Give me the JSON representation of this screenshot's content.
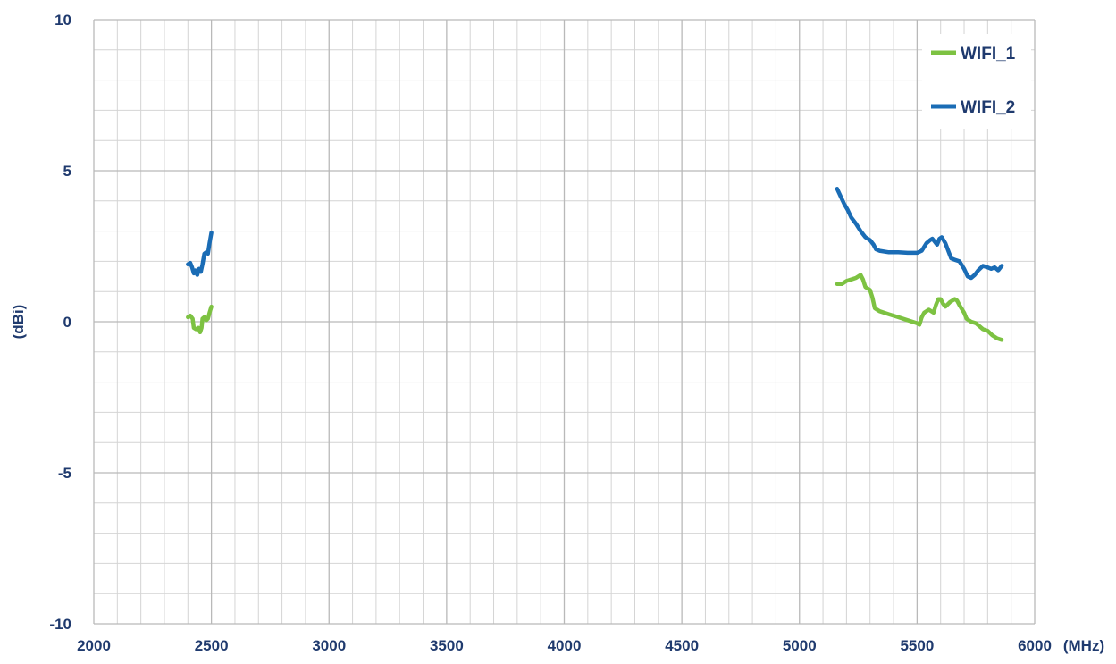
{
  "chart_data": {
    "type": "line",
    "title": "",
    "xlabel": "(MHz)",
    "ylabel": "(dBi)",
    "xlim": [
      2000,
      6000
    ],
    "ylim": [
      -10,
      10
    ],
    "x_ticks": [
      2000,
      2500,
      3000,
      3500,
      4000,
      4500,
      5000,
      5500,
      6000
    ],
    "y_ticks": [
      -10,
      -5,
      0,
      5,
      10
    ],
    "x_minor_step": 100,
    "y_minor_step": 1,
    "grid": true,
    "legend_position": "top-right",
    "series": [
      {
        "name": "WIFI_1",
        "color": "#7dc242",
        "segments": [
          [
            [
              2400,
              0.15
            ],
            [
              2410,
              0.2
            ],
            [
              2420,
              0.1
            ],
            [
              2425,
              -0.2
            ],
            [
              2435,
              -0.25
            ],
            [
              2445,
              -0.2
            ],
            [
              2452,
              -0.35
            ],
            [
              2458,
              -0.2
            ],
            [
              2462,
              0.1
            ],
            [
              2470,
              0.15
            ],
            [
              2478,
              0.05
            ],
            [
              2485,
              0.1
            ],
            [
              2492,
              0.3
            ],
            [
              2500,
              0.5
            ]
          ],
          [
            [
              5160,
              1.25
            ],
            [
              5180,
              1.25
            ],
            [
              5200,
              1.35
            ],
            [
              5220,
              1.4
            ],
            [
              5240,
              1.45
            ],
            [
              5260,
              1.55
            ],
            [
              5270,
              1.4
            ],
            [
              5280,
              1.15
            ],
            [
              5300,
              1.05
            ],
            [
              5310,
              0.8
            ],
            [
              5320,
              0.45
            ],
            [
              5340,
              0.35
            ],
            [
              5380,
              0.25
            ],
            [
              5420,
              0.15
            ],
            [
              5460,
              0.05
            ],
            [
              5500,
              -0.05
            ],
            [
              5510,
              -0.1
            ],
            [
              5520,
              0.15
            ],
            [
              5530,
              0.3
            ],
            [
              5550,
              0.4
            ],
            [
              5570,
              0.3
            ],
            [
              5580,
              0.55
            ],
            [
              5590,
              0.75
            ],
            [
              5600,
              0.75
            ],
            [
              5610,
              0.6
            ],
            [
              5620,
              0.5
            ],
            [
              5640,
              0.65
            ],
            [
              5660,
              0.75
            ],
            [
              5670,
              0.7
            ],
            [
              5680,
              0.55
            ],
            [
              5700,
              0.3
            ],
            [
              5710,
              0.1
            ],
            [
              5730,
              0.0
            ],
            [
              5750,
              -0.05
            ],
            [
              5780,
              -0.25
            ],
            [
              5800,
              -0.3
            ],
            [
              5820,
              -0.45
            ],
            [
              5840,
              -0.55
            ],
            [
              5860,
              -0.6
            ]
          ]
        ]
      },
      {
        "name": "WIFI_2",
        "color": "#1a6cb5",
        "segments": [
          [
            [
              2400,
              1.9
            ],
            [
              2410,
              1.95
            ],
            [
              2418,
              1.8
            ],
            [
              2425,
              1.6
            ],
            [
              2432,
              1.7
            ],
            [
              2440,
              1.55
            ],
            [
              2447,
              1.75
            ],
            [
              2455,
              1.65
            ],
            [
              2462,
              1.9
            ],
            [
              2470,
              2.25
            ],
            [
              2478,
              2.3
            ],
            [
              2485,
              2.25
            ],
            [
              2492,
              2.6
            ],
            [
              2500,
              2.95
            ]
          ],
          [
            [
              5160,
              4.4
            ],
            [
              5175,
              4.15
            ],
            [
              5190,
              3.9
            ],
            [
              5205,
              3.7
            ],
            [
              5220,
              3.45
            ],
            [
              5240,
              3.25
            ],
            [
              5260,
              3.0
            ],
            [
              5280,
              2.8
            ],
            [
              5300,
              2.7
            ],
            [
              5315,
              2.55
            ],
            [
              5325,
              2.4
            ],
            [
              5340,
              2.35
            ],
            [
              5380,
              2.3
            ],
            [
              5420,
              2.3
            ],
            [
              5460,
              2.28
            ],
            [
              5500,
              2.28
            ],
            [
              5520,
              2.35
            ],
            [
              5540,
              2.6
            ],
            [
              5555,
              2.7
            ],
            [
              5565,
              2.75
            ],
            [
              5575,
              2.65
            ],
            [
              5585,
              2.55
            ],
            [
              5595,
              2.75
            ],
            [
              5605,
              2.8
            ],
            [
              5620,
              2.6
            ],
            [
              5635,
              2.3
            ],
            [
              5645,
              2.1
            ],
            [
              5660,
              2.05
            ],
            [
              5680,
              2.0
            ],
            [
              5700,
              1.75
            ],
            [
              5715,
              1.5
            ],
            [
              5730,
              1.45
            ],
            [
              5745,
              1.55
            ],
            [
              5760,
              1.7
            ],
            [
              5780,
              1.85
            ],
            [
              5800,
              1.8
            ],
            [
              5815,
              1.75
            ],
            [
              5830,
              1.8
            ],
            [
              5845,
              1.7
            ],
            [
              5860,
              1.85
            ]
          ]
        ]
      }
    ]
  }
}
